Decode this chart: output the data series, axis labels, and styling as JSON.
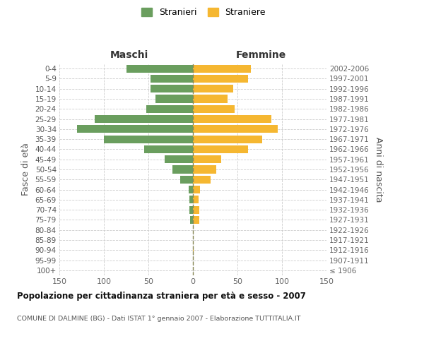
{
  "age_groups": [
    "100+",
    "95-99",
    "90-94",
    "85-89",
    "80-84",
    "75-79",
    "70-74",
    "65-69",
    "60-64",
    "55-59",
    "50-54",
    "45-49",
    "40-44",
    "35-39",
    "30-34",
    "25-29",
    "20-24",
    "15-19",
    "10-14",
    "5-9",
    "0-4"
  ],
  "birth_years": [
    "≤ 1906",
    "1907-1911",
    "1912-1916",
    "1917-1921",
    "1922-1926",
    "1927-1931",
    "1932-1936",
    "1937-1941",
    "1942-1946",
    "1947-1951",
    "1952-1956",
    "1957-1961",
    "1962-1966",
    "1967-1971",
    "1972-1976",
    "1977-1981",
    "1982-1986",
    "1987-1991",
    "1992-1996",
    "1997-2001",
    "2002-2006"
  ],
  "males": [
    0,
    0,
    0,
    0,
    0,
    3,
    4,
    4,
    5,
    14,
    23,
    32,
    55,
    100,
    130,
    110,
    52,
    42,
    48,
    48,
    75
  ],
  "females": [
    0,
    0,
    1,
    0,
    0,
    7,
    7,
    6,
    8,
    20,
    26,
    32,
    62,
    78,
    95,
    88,
    47,
    39,
    45,
    62,
    65
  ],
  "male_color": "#6a9e5e",
  "female_color": "#f5b731",
  "center_line_color": "#888855",
  "background_color": "#ffffff",
  "grid_color": "#cccccc",
  "title": "Popolazione per cittadinanza straniera per età e sesso - 2007",
  "subtitle": "COMUNE DI DALMINE (BG) - Dati ISTAT 1° gennaio 2007 - Elaborazione TUTTITALIA.IT",
  "ylabel_left": "Fasce di età",
  "ylabel_right": "Anni di nascita",
  "xlabel_left": "Maschi",
  "xlabel_right": "Femmine",
  "legend_stranieri": "Stranieri",
  "legend_straniere": "Straniere",
  "xlim": 150
}
